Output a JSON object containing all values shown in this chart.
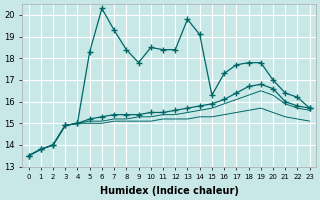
{
  "xlabel": "Humidex (Indice chaleur)",
  "ylabel": "",
  "background_color": "#c8e8e8",
  "grid_color": "#ffffff",
  "line_color": "#006666",
  "xlim": [
    -0.5,
    23.5
  ],
  "ylim": [
    13,
    20.5
  ],
  "yticks": [
    13,
    14,
    15,
    16,
    17,
    18,
    19,
    20
  ],
  "xticks": [
    0,
    1,
    2,
    3,
    4,
    5,
    6,
    7,
    8,
    9,
    10,
    11,
    12,
    13,
    14,
    15,
    16,
    17,
    18,
    19,
    20,
    21,
    22,
    23
  ],
  "series1": [
    13.5,
    13.8,
    14.0,
    14.9,
    15.0,
    18.3,
    20.3,
    19.3,
    18.4,
    17.8,
    18.5,
    18.4,
    18.4,
    19.8,
    19.1,
    16.3,
    17.3,
    17.7,
    17.8,
    17.8,
    17.0,
    16.4,
    16.2,
    15.7
  ],
  "series2": [
    13.5,
    13.8,
    14.0,
    14.9,
    15.0,
    15.2,
    15.3,
    15.4,
    15.4,
    15.4,
    15.5,
    15.5,
    15.6,
    15.7,
    15.8,
    15.9,
    16.1,
    16.4,
    16.7,
    16.8,
    16.6,
    16.0,
    15.8,
    15.7
  ],
  "series3": [
    13.5,
    13.8,
    14.0,
    14.9,
    15.0,
    15.1,
    15.1,
    15.2,
    15.2,
    15.3,
    15.3,
    15.4,
    15.4,
    15.5,
    15.6,
    15.7,
    15.9,
    16.1,
    16.3,
    16.5,
    16.3,
    15.9,
    15.7,
    15.6
  ],
  "series4": [
    13.5,
    13.8,
    14.0,
    14.9,
    15.0,
    15.0,
    15.0,
    15.1,
    15.1,
    15.1,
    15.1,
    15.2,
    15.2,
    15.2,
    15.3,
    15.3,
    15.4,
    15.5,
    15.6,
    15.7,
    15.5,
    15.3,
    15.2,
    15.1
  ]
}
